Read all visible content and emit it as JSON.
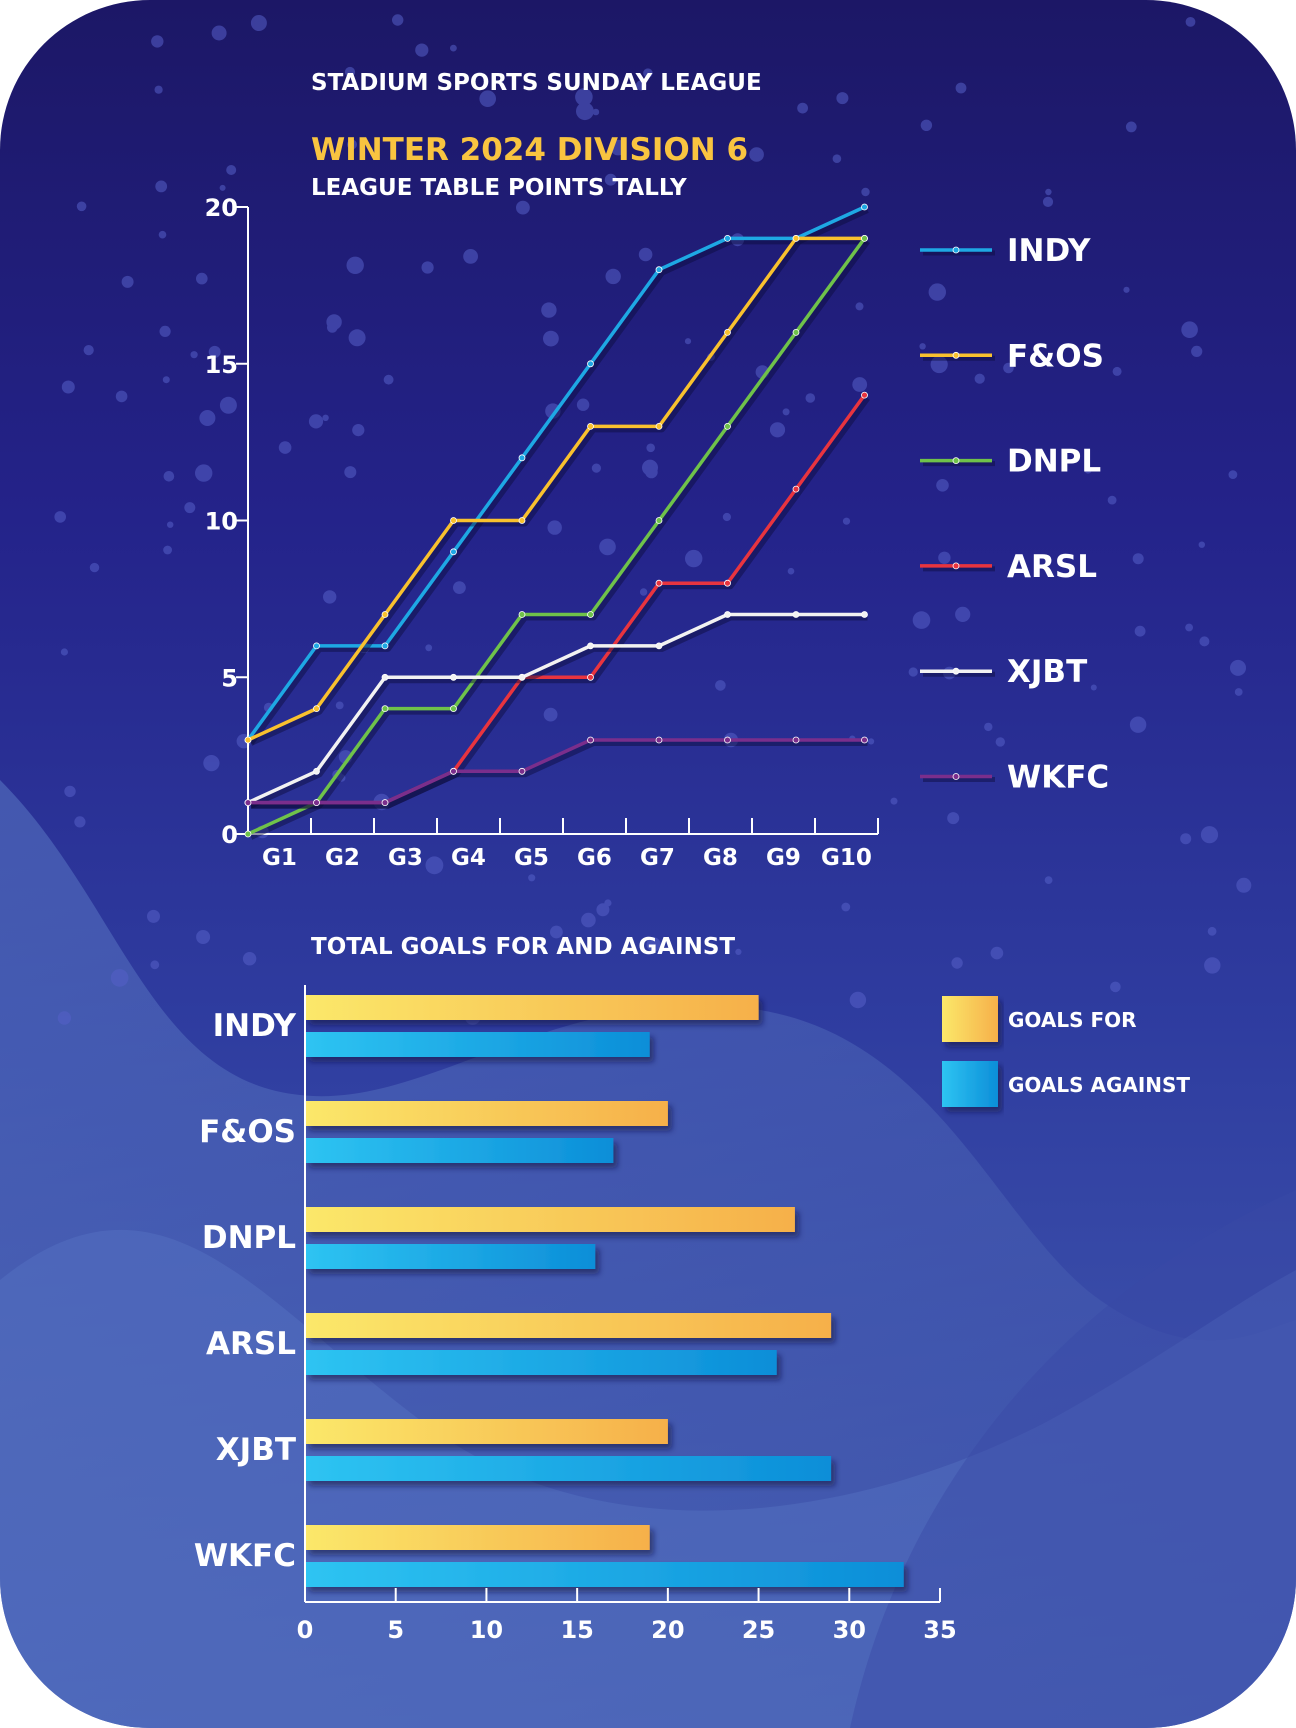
{
  "header": {
    "league": "STADIUM SPORTS SUNDAY LEAGUE",
    "season": "WINTER 2024 DIVISION 6",
    "subtitle": "LEAGUE TABLE POINTS TALLY"
  },
  "colors": {
    "accent": "#f9c440",
    "INDY": "#1ea8e4",
    "F&OS": "#f9c12e",
    "DNPL": "#6fc24a",
    "ARSL": "#e8343f",
    "XJBT": "#f2f2f2",
    "WKFC": "#7a2e8c",
    "goals_for": "#f9c440",
    "goals_against": "#15a6e6"
  },
  "chart_data": [
    {
      "type": "line",
      "title": "LEAGUE TABLE POINTS TALLY",
      "x": [
        "G1",
        "G2",
        "G3",
        "G4",
        "G5",
        "G6",
        "G7",
        "G8",
        "G9",
        "G10"
      ],
      "ylim": [
        0,
        20
      ],
      "yticks": [
        0,
        5,
        10,
        15,
        20
      ],
      "legend_position": "right",
      "series": [
        {
          "name": "INDY",
          "values": [
            3,
            6,
            6,
            9,
            12,
            15,
            18,
            19,
            19,
            20
          ]
        },
        {
          "name": "F&OS",
          "values": [
            3,
            4,
            7,
            10,
            10,
            13,
            13,
            16,
            19,
            19
          ]
        },
        {
          "name": "DNPL",
          "values": [
            0,
            1,
            4,
            4,
            7,
            7,
            10,
            13,
            16,
            19
          ]
        },
        {
          "name": "ARSL",
          "values": [
            1,
            1,
            1,
            2,
            5,
            5,
            8,
            8,
            11,
            14
          ]
        },
        {
          "name": "XJBT",
          "values": [
            1,
            2,
            5,
            5,
            5,
            6,
            6,
            7,
            7,
            7
          ]
        },
        {
          "name": "WKFC",
          "values": [
            1,
            1,
            1,
            2,
            2,
            3,
            3,
            3,
            3,
            3
          ]
        }
      ]
    },
    {
      "type": "bar",
      "orientation": "horizontal",
      "title": "TOTAL GOALS FOR AND AGAINST",
      "categories": [
        "INDY",
        "F&OS",
        "DNPL",
        "ARSL",
        "XJBT",
        "WKFC"
      ],
      "xlim": [
        0,
        35
      ],
      "xticks": [
        0,
        5,
        10,
        15,
        20,
        25,
        30,
        35
      ],
      "legend_position": "right",
      "series": [
        {
          "name": "GOALS FOR",
          "values": [
            25,
            20,
            27,
            29,
            20,
            19
          ]
        },
        {
          "name": "GOALS AGAINST",
          "values": [
            19,
            17,
            16,
            26,
            29,
            33
          ]
        }
      ]
    }
  ]
}
